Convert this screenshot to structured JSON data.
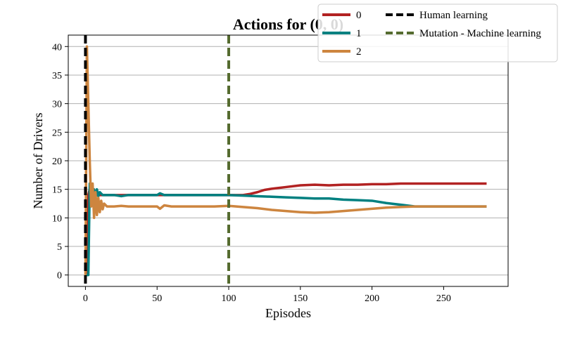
{
  "chart_data": {
    "type": "line",
    "title": "Actions for (0, 0)",
    "xlabel": "Episodes",
    "ylabel": "Number of Drivers",
    "xlim": [
      -12,
      295
    ],
    "ylim": [
      -2,
      42
    ],
    "xticks": [
      0,
      50,
      100,
      150,
      200,
      250
    ],
    "yticks": [
      0,
      5,
      10,
      15,
      20,
      25,
      30,
      35,
      40
    ],
    "grid": "horizontal",
    "legend_position": "top-right",
    "series": [
      {
        "name": "0",
        "color": "#b22222",
        "points": [
          [
            0,
            0
          ],
          [
            1,
            0
          ],
          [
            2,
            14
          ],
          [
            3,
            15
          ],
          [
            4,
            14
          ],
          [
            5,
            14
          ],
          [
            6,
            14
          ],
          [
            8,
            14
          ],
          [
            10,
            14
          ],
          [
            15,
            14
          ],
          [
            20,
            14
          ],
          [
            30,
            14
          ],
          [
            40,
            14
          ],
          [
            50,
            14
          ],
          [
            60,
            14
          ],
          [
            70,
            14
          ],
          [
            80,
            14
          ],
          [
            90,
            14
          ],
          [
            100,
            14
          ],
          [
            110,
            14
          ],
          [
            115,
            14.2
          ],
          [
            120,
            14.5
          ],
          [
            125,
            14.9
          ],
          [
            130,
            15.1
          ],
          [
            140,
            15.4
          ],
          [
            150,
            15.7
          ],
          [
            160,
            15.8
          ],
          [
            170,
            15.7
          ],
          [
            180,
            15.8
          ],
          [
            190,
            15.8
          ],
          [
            200,
            15.9
          ],
          [
            210,
            15.9
          ],
          [
            220,
            16
          ],
          [
            230,
            16
          ],
          [
            240,
            16
          ],
          [
            250,
            16
          ],
          [
            260,
            16
          ],
          [
            270,
            16
          ],
          [
            280,
            16
          ]
        ]
      },
      {
        "name": "1",
        "color": "#008080",
        "points": [
          [
            0,
            0
          ],
          [
            1,
            0
          ],
          [
            2,
            0
          ],
          [
            3,
            16
          ],
          [
            4,
            15.5
          ],
          [
            5,
            13
          ],
          [
            6,
            15
          ],
          [
            7,
            13.5
          ],
          [
            8,
            15
          ],
          [
            9,
            13.8
          ],
          [
            10,
            14.5
          ],
          [
            12,
            14
          ],
          [
            15,
            14
          ],
          [
            20,
            14
          ],
          [
            25,
            13.8
          ],
          [
            30,
            14
          ],
          [
            40,
            14
          ],
          [
            50,
            14
          ],
          [
            52,
            14.3
          ],
          [
            55,
            14
          ],
          [
            60,
            14
          ],
          [
            70,
            14
          ],
          [
            80,
            14
          ],
          [
            90,
            14
          ],
          [
            100,
            14
          ],
          [
            110,
            13.9
          ],
          [
            120,
            13.8
          ],
          [
            130,
            13.7
          ],
          [
            140,
            13.6
          ],
          [
            150,
            13.5
          ],
          [
            160,
            13.4
          ],
          [
            170,
            13.4
          ],
          [
            180,
            13.2
          ],
          [
            190,
            13.1
          ],
          [
            200,
            13
          ],
          [
            210,
            12.6
          ],
          [
            220,
            12.3
          ],
          [
            230,
            12
          ],
          [
            240,
            12
          ],
          [
            250,
            12
          ],
          [
            260,
            12
          ],
          [
            270,
            12
          ],
          [
            280,
            12
          ]
        ]
      },
      {
        "name": "2",
        "color": "#cd853f",
        "points": [
          [
            0,
            0
          ],
          [
            1,
            40
          ],
          [
            2,
            30
          ],
          [
            3,
            20
          ],
          [
            4,
            12
          ],
          [
            5,
            16
          ],
          [
            6,
            10
          ],
          [
            7,
            14.5
          ],
          [
            8,
            10.5
          ],
          [
            9,
            13.5
          ],
          [
            10,
            11
          ],
          [
            11,
            13
          ],
          [
            12,
            11.5
          ],
          [
            13,
            12.5
          ],
          [
            15,
            12
          ],
          [
            20,
            12
          ],
          [
            25,
            12.1
          ],
          [
            30,
            12
          ],
          [
            40,
            12
          ],
          [
            50,
            12
          ],
          [
            52,
            11.6
          ],
          [
            55,
            12.2
          ],
          [
            60,
            12
          ],
          [
            70,
            12
          ],
          [
            80,
            12
          ],
          [
            90,
            12
          ],
          [
            100,
            12.1
          ],
          [
            110,
            11.9
          ],
          [
            120,
            11.7
          ],
          [
            130,
            11.4
          ],
          [
            140,
            11.2
          ],
          [
            150,
            11
          ],
          [
            160,
            10.9
          ],
          [
            170,
            11
          ],
          [
            180,
            11.2
          ],
          [
            190,
            11.4
          ],
          [
            200,
            11.6
          ],
          [
            210,
            11.8
          ],
          [
            220,
            11.9
          ],
          [
            230,
            12
          ],
          [
            240,
            12
          ],
          [
            250,
            12
          ],
          [
            260,
            12
          ],
          [
            270,
            12
          ],
          [
            280,
            12
          ]
        ]
      }
    ],
    "vlines": [
      {
        "name": "Human learning",
        "x": 0,
        "color": "#000000"
      },
      {
        "name": "Mutation - Machine learning",
        "x": 100,
        "color": "#556b2f"
      }
    ]
  }
}
